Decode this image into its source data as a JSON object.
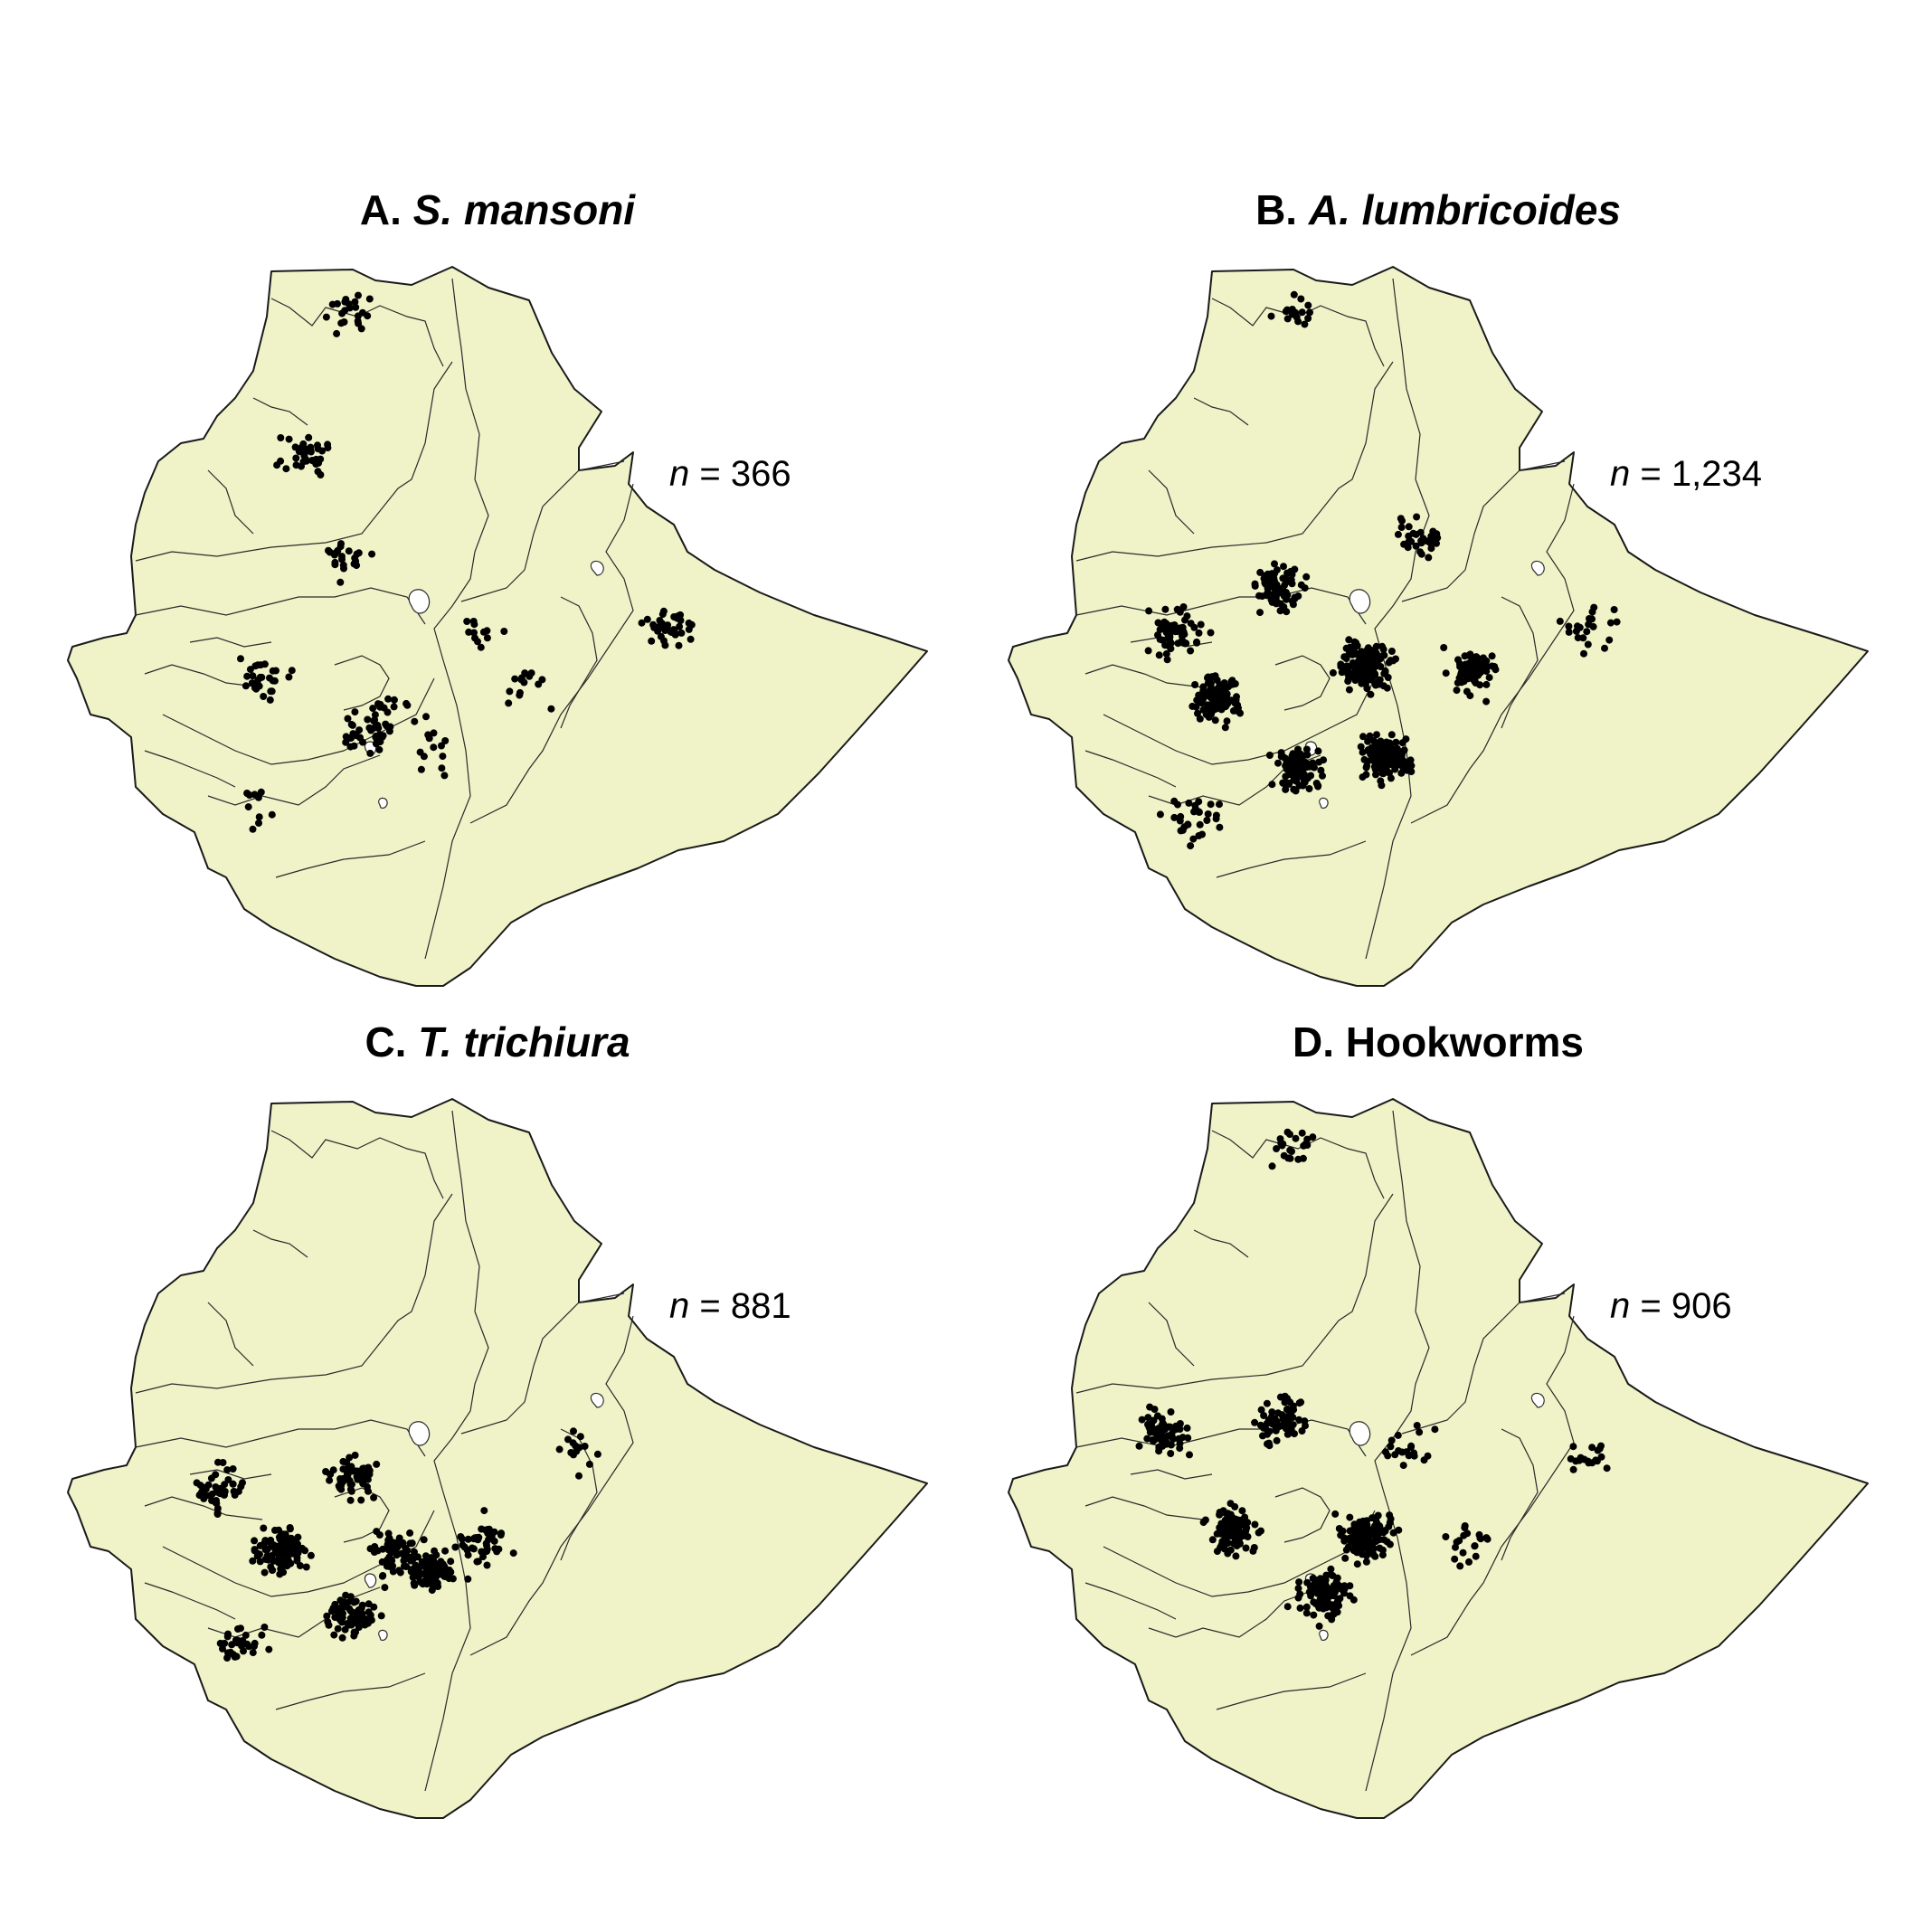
{
  "figure": {
    "panels": [
      {
        "id": "a",
        "letter": "A.",
        "species": "S. mansoni",
        "n_symbol": "n",
        "n_text": "= 366",
        "n": 366,
        "clusters": [
          {
            "lon": 37.5,
            "lat": 14.2,
            "count": 22
          },
          {
            "lon": 36.8,
            "lat": 12.0,
            "count": 34
          },
          {
            "lon": 37.4,
            "lat": 10.5,
            "count": 22
          },
          {
            "lon": 36.2,
            "lat": 8.6,
            "count": 28
          },
          {
            "lon": 37.8,
            "lat": 7.8,
            "count": 40
          },
          {
            "lon": 38.7,
            "lat": 7.4,
            "count": 12
          },
          {
            "lon": 39.4,
            "lat": 9.4,
            "count": 12
          },
          {
            "lon": 40.1,
            "lat": 8.5,
            "count": 14
          },
          {
            "lon": 42.2,
            "lat": 9.4,
            "count": 40
          },
          {
            "lon": 36.2,
            "lat": 6.6,
            "count": 10
          },
          {
            "lon": 38.2,
            "lat": 8.2,
            "count": 12
          }
        ]
      },
      {
        "id": "b",
        "letter": "B.",
        "species": "A. lumbricoides",
        "n_symbol": "n",
        "n_text": "= 1,234",
        "n": 1234,
        "clusters": [
          {
            "lon": 37.5,
            "lat": 14.2,
            "count": 16
          },
          {
            "lon": 35.8,
            "lat": 9.3,
            "count": 60
          },
          {
            "lon": 37.3,
            "lat": 10.0,
            "count": 80
          },
          {
            "lon": 36.4,
            "lat": 8.3,
            "count": 110
          },
          {
            "lon": 38.6,
            "lat": 8.8,
            "count": 160
          },
          {
            "lon": 38.9,
            "lat": 7.4,
            "count": 140
          },
          {
            "lon": 37.6,
            "lat": 7.2,
            "count": 90
          },
          {
            "lon": 40.2,
            "lat": 8.7,
            "count": 70
          },
          {
            "lon": 41.9,
            "lat": 9.4,
            "count": 22
          },
          {
            "lon": 39.4,
            "lat": 10.8,
            "count": 30
          },
          {
            "lon": 36.1,
            "lat": 6.4,
            "count": 30
          }
        ]
      },
      {
        "id": "c",
        "letter": "C.",
        "species": "T. trichiura",
        "n_symbol": "n",
        "n_text": "= 881",
        "n": 881,
        "clusters": [
          {
            "lon": 35.6,
            "lat": 8.9,
            "count": 45
          },
          {
            "lon": 36.5,
            "lat": 8.0,
            "count": 110
          },
          {
            "lon": 37.5,
            "lat": 9.1,
            "count": 60
          },
          {
            "lon": 38.2,
            "lat": 7.9,
            "count": 70
          },
          {
            "lon": 38.7,
            "lat": 7.7,
            "count": 80
          },
          {
            "lon": 37.5,
            "lat": 7.0,
            "count": 70
          },
          {
            "lon": 39.5,
            "lat": 8.1,
            "count": 40
          },
          {
            "lon": 35.9,
            "lat": 6.6,
            "count": 30
          },
          {
            "lon": 40.9,
            "lat": 9.6,
            "count": 14
          }
        ]
      },
      {
        "id": "d",
        "letter": "D.",
        "species": "Hookworms",
        "n_symbol": "n",
        "n_text": "= 906",
        "n": 906,
        "clusters": [
          {
            "lon": 37.5,
            "lat": 14.2,
            "count": 22
          },
          {
            "lon": 35.6,
            "lat": 9.8,
            "count": 70
          },
          {
            "lon": 37.3,
            "lat": 10.0,
            "count": 70
          },
          {
            "lon": 36.6,
            "lat": 8.3,
            "count": 90
          },
          {
            "lon": 38.6,
            "lat": 8.2,
            "count": 140
          },
          {
            "lon": 38.0,
            "lat": 7.3,
            "count": 120
          },
          {
            "lon": 40.1,
            "lat": 8.1,
            "count": 20
          },
          {
            "lon": 41.9,
            "lat": 9.4,
            "count": 18
          },
          {
            "lon": 39.2,
            "lat": 9.6,
            "count": 20
          }
        ]
      }
    ]
  }
}
